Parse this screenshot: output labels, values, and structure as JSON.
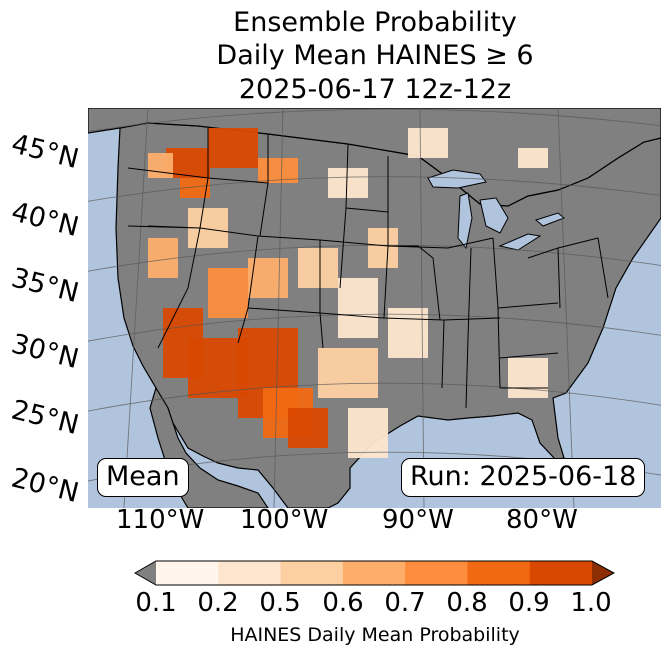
{
  "title": {
    "line1": "Ensemble Probability",
    "line2": "Daily Mean HAINES ≥ 6",
    "line3": "2025-06-17 12z-12z"
  },
  "map": {
    "latitude_labels": [
      "45°N",
      "40°N",
      "35°N",
      "30°N",
      "25°N",
      "20°N"
    ],
    "longitude_labels": [
      "110°W",
      "100°W",
      "90°W",
      "80°W"
    ],
    "statistic_label": "Mean",
    "run_label": "Run: 2025-06-18",
    "colors": {
      "ocean": "#b0c4de",
      "land_below_threshold": "#808080",
      "border": "#000000",
      "graticule": "#555555"
    }
  },
  "colorbar": {
    "label": "HAINES Daily Mean Probability",
    "tick_labels": [
      "0.1",
      "0.2",
      "0.5",
      "0.6",
      "0.7",
      "0.8",
      "0.9",
      "1.0"
    ],
    "under_color": "#808080",
    "bin_colors": [
      "#fff5eb",
      "#fee6ce",
      "#fdd0a2",
      "#fdae6b",
      "#fd8d3c",
      "#f16913",
      "#d94801"
    ],
    "over_color": "#8c2d04"
  }
}
